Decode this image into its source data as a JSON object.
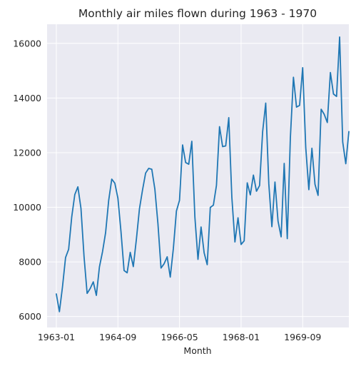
{
  "colors": {
    "background": "#ffffff",
    "plot_background": "#eaeaf2",
    "grid": "#ffffff",
    "line": "#1f77b4",
    "text": "#262626"
  },
  "chart_data": {
    "type": "line",
    "title": "Monthly air miles flown during 1963 - 1970",
    "xlabel": "Month",
    "ylabel": "",
    "grid": true,
    "legend": "none",
    "x_tick_labels": [
      "1963-01",
      "1964-09",
      "1966-05",
      "1968-01",
      "1969-09"
    ],
    "y_tick_labels": [
      "6000",
      "8000",
      "10000",
      "12000",
      "14000",
      "16000"
    ],
    "y_ticks": [
      6000,
      8000,
      10000,
      12000,
      14000,
      16000
    ],
    "ylim": [
      5600,
      16700
    ],
    "xlim": [
      "1962-10",
      "1970-12"
    ],
    "series": [
      {
        "name": "",
        "x": [
          "1963-01",
          "1963-02",
          "1963-03",
          "1963-04",
          "1963-05",
          "1963-06",
          "1963-07",
          "1963-08",
          "1963-09",
          "1963-10",
          "1963-11",
          "1963-12",
          "1964-01",
          "1964-02",
          "1964-03",
          "1964-04",
          "1964-05",
          "1964-06",
          "1964-07",
          "1964-08",
          "1964-09",
          "1964-10",
          "1964-11",
          "1964-12",
          "1965-01",
          "1965-02",
          "1965-03",
          "1965-04",
          "1965-05",
          "1965-06",
          "1965-07",
          "1965-08",
          "1965-09",
          "1965-10",
          "1965-11",
          "1965-12",
          "1966-01",
          "1966-02",
          "1966-03",
          "1966-04",
          "1966-05",
          "1966-06",
          "1966-07",
          "1966-08",
          "1966-09",
          "1966-10",
          "1966-11",
          "1966-12",
          "1967-01",
          "1967-02",
          "1967-03",
          "1967-04",
          "1967-05",
          "1967-06",
          "1967-07",
          "1967-08",
          "1967-09",
          "1967-10",
          "1967-11",
          "1967-12",
          "1968-01",
          "1968-02",
          "1968-03",
          "1968-04",
          "1968-05",
          "1968-06",
          "1968-07",
          "1968-08",
          "1968-09",
          "1968-10",
          "1968-11",
          "1968-12",
          "1969-01",
          "1969-02",
          "1969-03",
          "1969-04",
          "1969-05",
          "1969-06",
          "1969-07",
          "1969-08",
          "1969-09",
          "1969-10",
          "1969-11",
          "1969-12",
          "1970-01",
          "1970-02",
          "1970-03",
          "1970-04",
          "1970-05",
          "1970-06",
          "1970-07",
          "1970-08",
          "1970-09",
          "1970-10",
          "1970-11",
          "1970-12"
        ],
        "values": [
          6827,
          6178,
          7084,
          8162,
          8462,
          9644,
          10466,
          10748,
          9963,
          8194,
          6848,
          7027,
          7269,
          6775,
          7819,
          8371,
          9069,
          10248,
          11030,
          10882,
          10333,
          9109,
          7685,
          7602,
          8350,
          7829,
          8829,
          9948,
          10638,
          11253,
          11424,
          11391,
          10665,
          9396,
          7775,
          7933,
          8186,
          7444,
          8484,
          9864,
          10252,
          12282,
          11637,
          11577,
          12417,
          9637,
          8094,
          9280,
          8334,
          7899,
          9994,
          10078,
          10801,
          12953,
          12222,
          12246,
          13281,
          10366,
          8730,
          9614,
          8639,
          8772,
          10894,
          10455,
          11179,
          10588,
          10794,
          12770,
          13812,
          10857,
          9290,
          10925,
          9491,
          8919,
          11607,
          8852,
          12537,
          14759,
          13667,
          13731,
          15110,
          12185,
          10645,
          12161,
          10840,
          10436,
          13589,
          13402,
          13103,
          14933,
          14147,
          14057,
          16234,
          12389,
          11595,
          12772
        ]
      }
    ]
  }
}
